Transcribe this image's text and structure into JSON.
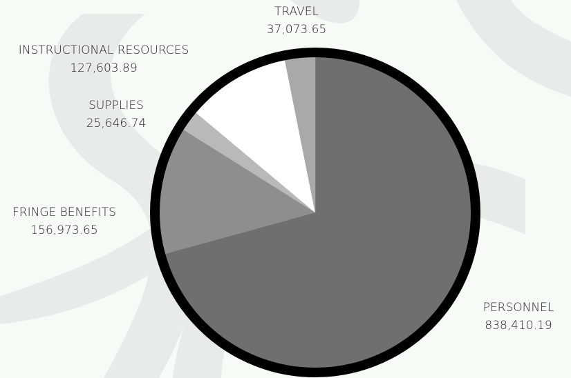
{
  "chart_data": {
    "type": "pie",
    "categories": [
      "PERSONNEL",
      "FRINGE BENEFITS",
      "SUPPLIES",
      "INSTRUCTIONAL RESOURCES",
      "TRAVEL"
    ],
    "values": [
      838410.19,
      156973.65,
      25646.74,
      127603.89,
      37073.65
    ],
    "value_labels": [
      "838,410.19",
      "156,973.65",
      "25,646.74",
      "127,603.89",
      "37,073.65"
    ],
    "colors": [
      "#6f6f6f",
      "#8e8e8e",
      "#b9b9b9",
      "#ffffff",
      "#a9a9a9"
    ]
  }
}
